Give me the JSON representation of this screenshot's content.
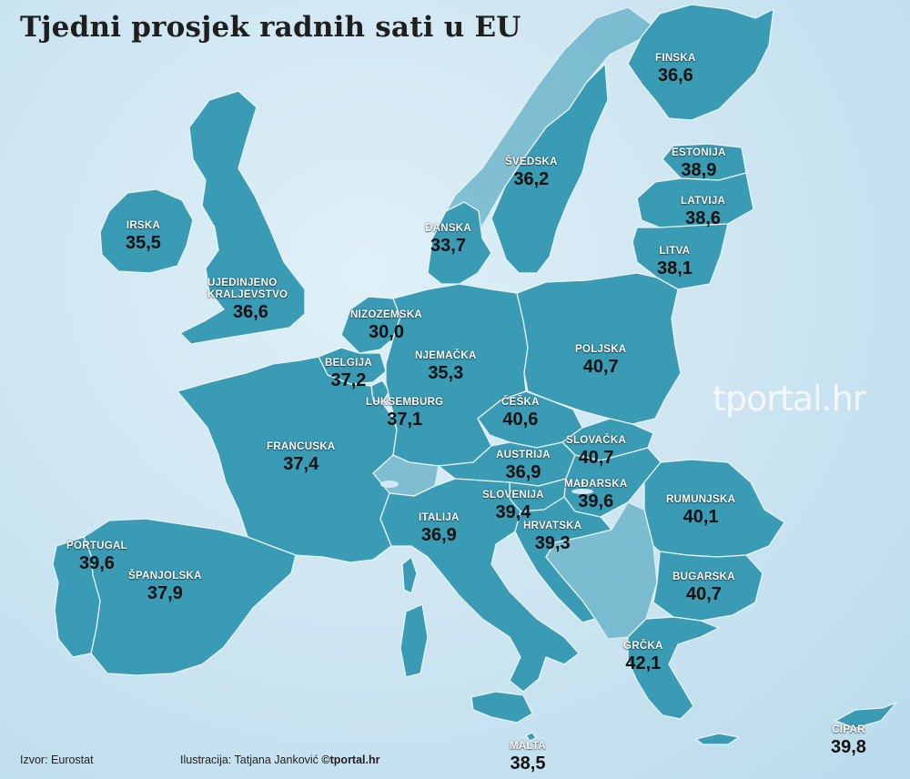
{
  "title": "Tjedni prosjek radnih sati u EU",
  "watermark": "tportal.hr",
  "footer": {
    "source": "Izvor: Eurostat",
    "illustration": "Ilustracija: Tatjana Janković",
    "brand": "©tportal.hr"
  },
  "colors": {
    "sea": "#cfe6f2",
    "land": "#3a9bb5",
    "border": "#e8f4f9",
    "value_text": "#111111",
    "name_text": "#ffffff"
  },
  "countries": [
    {
      "id": "finska",
      "name": "FINSKA",
      "value": "36,6"
    },
    {
      "id": "svedska",
      "name": "ŠVEDSKA",
      "value": "36,2"
    },
    {
      "id": "estonija",
      "name": "ESTONIJA",
      "value": "38,9"
    },
    {
      "id": "latvija",
      "name": "LATVIJA",
      "value": "38,6"
    },
    {
      "id": "litva",
      "name": "LITVA",
      "value": "38,1"
    },
    {
      "id": "irska",
      "name": "IRSKA",
      "value": "35,5"
    },
    {
      "id": "danska",
      "name": "DANSKA",
      "value": "33,7"
    },
    {
      "id": "ujedinjeno-kraljevstvo",
      "name": "UJEDINJENO KRALJEVSTVO",
      "value": "36,6"
    },
    {
      "id": "nizozemska",
      "name": "NIZOZEMSKA",
      "value": "30,0"
    },
    {
      "id": "njemacka",
      "name": "NJEMAČKA",
      "value": "35,3"
    },
    {
      "id": "poljska",
      "name": "POLJSKA",
      "value": "40,7"
    },
    {
      "id": "belgija",
      "name": "BELGIJA",
      "value": "37,2"
    },
    {
      "id": "luksemburg",
      "name": "LUKSEMBURG",
      "value": "37,1"
    },
    {
      "id": "ceska",
      "name": "ČEŠKA",
      "value": "40,6"
    },
    {
      "id": "francuska",
      "name": "FRANCUSKA",
      "value": "37,4"
    },
    {
      "id": "slovacka",
      "name": "SLOVAČKA",
      "value": "40,7"
    },
    {
      "id": "austrija",
      "name": "AUSTRIJA",
      "value": "36,9"
    },
    {
      "id": "madarska",
      "name": "MAĐARSKA",
      "value": "39,6"
    },
    {
      "id": "slovenija",
      "name": "SLOVENIJA",
      "value": "39,4"
    },
    {
      "id": "rumunjska",
      "name": "RUMUNJSKA",
      "value": "40,1"
    },
    {
      "id": "italija",
      "name": "ITALIJA",
      "value": "36,9"
    },
    {
      "id": "hrvatska",
      "name": "HRVATSKA",
      "value": "39,3"
    },
    {
      "id": "portugal",
      "name": "PORTUGAL",
      "value": "39,6"
    },
    {
      "id": "spanjolska",
      "name": "ŠPANJOLSKA",
      "value": "37,9"
    },
    {
      "id": "bugarska",
      "name": "BUGARSKA",
      "value": "40,7"
    },
    {
      "id": "grcka",
      "name": "GRČKA",
      "value": "42,1"
    },
    {
      "id": "malta",
      "name": "MALTA",
      "value": "38,5"
    },
    {
      "id": "cipar",
      "name": "CIPAR",
      "value": "39,8"
    }
  ]
}
